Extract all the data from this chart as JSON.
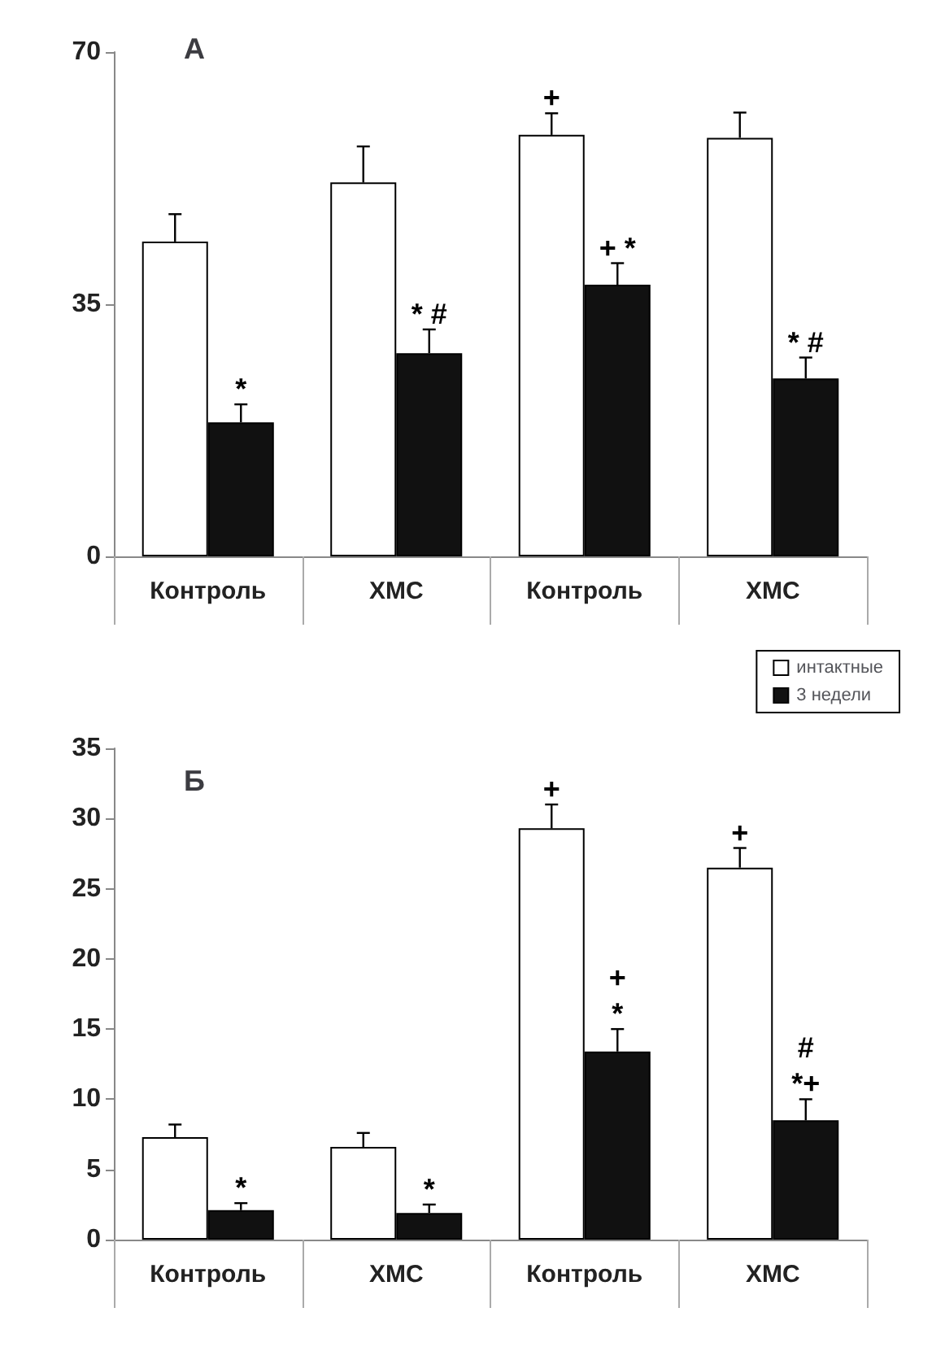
{
  "chart_data": [
    {
      "type": "bar",
      "title": "А",
      "categories": [
        "Контроль",
        "ХМС",
        "Контроль",
        "ХМС"
      ],
      "ylim": [
        0,
        70
      ],
      "yticks": [
        0,
        35,
        70
      ],
      "grid": false,
      "legend": false,
      "series": [
        {
          "color": "#ffffff",
          "values": [
            43.7,
            51.9,
            58.5,
            58.1
          ],
          "errors": [
            3.8,
            5,
            3,
            3.5
          ],
          "value_labels": [
            null,
            null,
            "+",
            null
          ]
        },
        {
          "color": "#111111",
          "values": [
            18.6,
            28.2,
            37.7,
            24.7
          ],
          "errors": [
            2.5,
            3.3,
            3,
            2.9
          ],
          "value_labels": [
            "*",
            "* #",
            "+ *",
            "* #"
          ]
        }
      ]
    },
    {
      "type": "bar",
      "title": "Б",
      "categories": [
        "Контроль",
        "ХМС",
        "Контроль",
        "ХМС"
      ],
      "ylim": [
        0,
        35
      ],
      "yticks": [
        0,
        5,
        10,
        15,
        20,
        25,
        30,
        35
      ],
      "grid": false,
      "legend": "top right",
      "series": [
        {
          "name": "интактные",
          "color": "#ffffff",
          "values": [
            7.3,
            6.6,
            29.3,
            26.5
          ],
          "errors": [
            0.9,
            1,
            1.7,
            1.4
          ],
          "value_labels": [
            null,
            null,
            "+",
            "+"
          ]
        },
        {
          "name": "3 недели",
          "color": "#111111",
          "values": [
            2.1,
            1.9,
            13.4,
            8.5
          ],
          "errors": [
            0.5,
            0.6,
            1.6,
            1.5
          ],
          "value_labels": [
            "*",
            "*",
            "+\n\n*",
            "#\n\n*+"
          ]
        }
      ]
    }
  ]
}
